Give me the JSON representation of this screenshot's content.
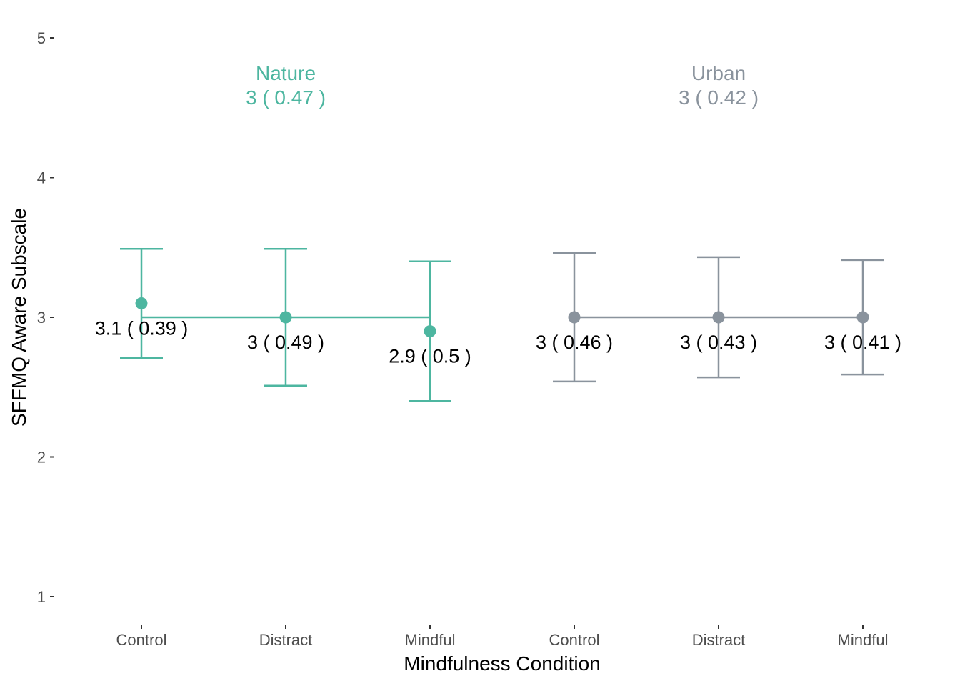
{
  "chart_data": {
    "type": "errorbar-point",
    "xlabel": "Mindfulness Condition",
    "ylabel": "SFFMQ Aware Subscale",
    "ylim": [
      1,
      5
    ],
    "yticks": [
      "1",
      "2",
      "3",
      "4",
      "5"
    ],
    "categories": [
      "Control",
      "Distract",
      "Mindful",
      "Control",
      "Distract",
      "Mindful"
    ],
    "groups": [
      {
        "name": "Nature",
        "summary": "3  ( 0.47 )",
        "color": "#4DB6A0",
        "points": [
          {
            "condition": "Control",
            "mean": 3.1,
            "lower": 2.71,
            "upper": 3.49,
            "label": "3.1  ( 0.39 )"
          },
          {
            "condition": "Distract",
            "mean": 3.0,
            "lower": 2.51,
            "upper": 3.49,
            "label": "3  ( 0.49 )"
          },
          {
            "condition": "Mindful",
            "mean": 2.9,
            "lower": 2.4,
            "upper": 3.4,
            "label": "2.9  ( 0.5 )"
          }
        ],
        "group_mean": 3.0
      },
      {
        "name": "Urban",
        "summary": "3  ( 0.42 )",
        "color": "#8A939D",
        "points": [
          {
            "condition": "Control",
            "mean": 3.0,
            "lower": 2.54,
            "upper": 3.46,
            "label": "3  ( 0.46 )"
          },
          {
            "condition": "Distract",
            "mean": 3.0,
            "lower": 2.57,
            "upper": 3.43,
            "label": "3  ( 0.43 )"
          },
          {
            "condition": "Mindful",
            "mean": 3.0,
            "lower": 2.59,
            "upper": 3.41,
            "label": "3  ( 0.41 )"
          }
        ],
        "group_mean": 3.0
      }
    ]
  }
}
